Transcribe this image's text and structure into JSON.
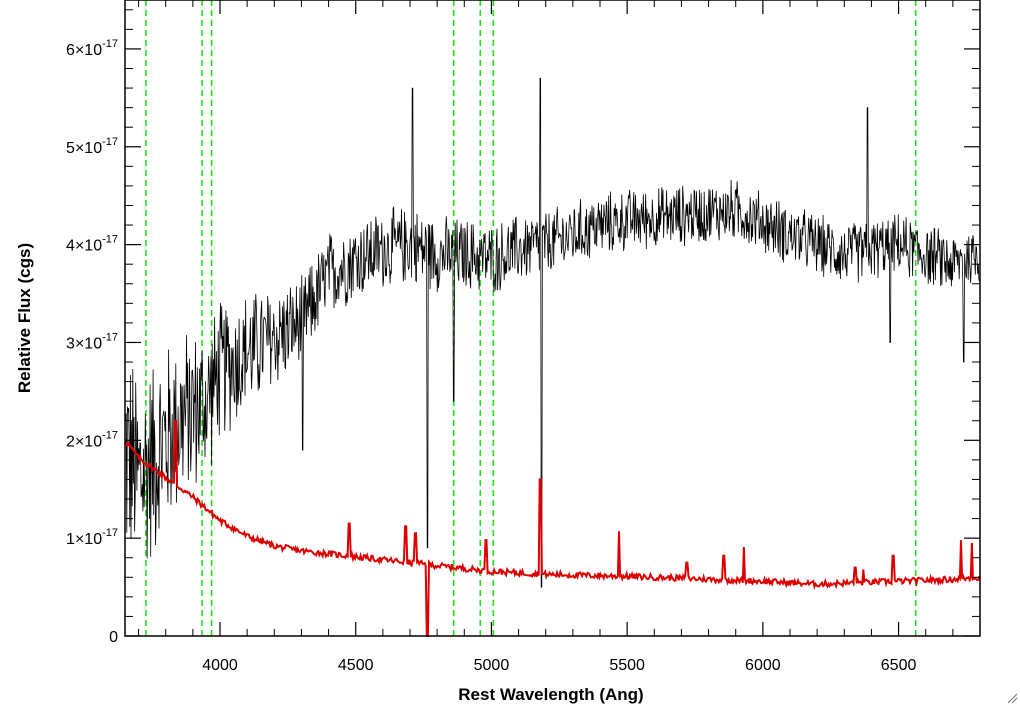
{
  "chart_data": {
    "type": "line",
    "title": "",
    "xlabel": "Rest Wavelength (Ang)",
    "ylabel": "Relative Flux (cgs)",
    "xlim": [
      3650,
      6800
    ],
    "ylim": [
      0,
      6.5e-17
    ],
    "x_ticks": [
      4000,
      4500,
      5000,
      5500,
      6000,
      6500
    ],
    "x_tick_labels": [
      "4000",
      "4500",
      "5000",
      "5500",
      "6000",
      "6500"
    ],
    "y_ticks": [
      0,
      1e-17,
      2e-17,
      3e-17,
      4e-17,
      5e-17,
      6e-17
    ],
    "y_tick_labels": [
      {
        "mantissa": "0",
        "exponent": ""
      },
      {
        "mantissa": "1",
        "exponent": "-17"
      },
      {
        "mantissa": "2",
        "exponent": "-17"
      },
      {
        "mantissa": "3",
        "exponent": "-17"
      },
      {
        "mantissa": "4",
        "exponent": "-17"
      },
      {
        "mantissa": "5",
        "exponent": "-17"
      },
      {
        "mantissa": "6",
        "exponent": "-17"
      }
    ],
    "reference_lines": {
      "style": "dashed",
      "color": "#22dd22",
      "x": [
        3727,
        3934,
        3969,
        4861,
        4959,
        5007,
        6563
      ]
    },
    "series": [
      {
        "color": "#000000",
        "anchors": [
          [
            3650,
            1.9e-17
          ],
          [
            3700,
            1.6e-17
          ],
          [
            3750,
            1.8e-17
          ],
          [
            3800,
            2e-17
          ],
          [
            3850,
            2.2e-17
          ],
          [
            3900,
            2.3e-17
          ],
          [
            3950,
            2.4e-17
          ],
          [
            4000,
            2.7e-17
          ],
          [
            4100,
            2.9e-17
          ],
          [
            4200,
            3.05e-17
          ],
          [
            4300,
            3.2e-17
          ],
          [
            4400,
            3.7e-17
          ],
          [
            4500,
            3.85e-17
          ],
          [
            4600,
            3.95e-17
          ],
          [
            4700,
            4e-17
          ],
          [
            4800,
            3.9e-17
          ],
          [
            4900,
            3.9e-17
          ],
          [
            5000,
            3.85e-17
          ],
          [
            5100,
            3.95e-17
          ],
          [
            5200,
            4e-17
          ],
          [
            5300,
            4.1e-17
          ],
          [
            5400,
            4.2e-17
          ],
          [
            5500,
            4.25e-17
          ],
          [
            5700,
            4.3e-17
          ],
          [
            5900,
            4.35e-17
          ],
          [
            6100,
            4.1e-17
          ],
          [
            6300,
            3.9e-17
          ],
          [
            6500,
            4e-17
          ],
          [
            6700,
            3.8e-17
          ],
          [
            6800,
            3.9e-17
          ]
        ],
        "noise": [
          [
            3650,
            1.3e-17
          ],
          [
            4000,
            8e-18
          ],
          [
            4300,
            5e-18
          ],
          [
            4600,
            4.5e-18
          ],
          [
            5500,
            3.5e-18
          ],
          [
            6800,
            3.5e-18
          ]
        ],
        "features": [
          [
            4305,
            3.2e-17,
            1.9e-17,
            1.2
          ],
          [
            4710,
            4e-17,
            5.6e-17,
            1.2
          ],
          [
            4765,
            3.9e-17,
            9e-18,
            1.5
          ],
          [
            4861,
            3.9e-17,
            2.4e-17,
            1.5
          ],
          [
            5180,
            3.9e-17,
            5.7e-17,
            1.2
          ],
          [
            5185,
            3.8e-17,
            5e-18,
            1.2
          ],
          [
            6385,
            4e-17,
            5.4e-17,
            1.5
          ],
          [
            6470,
            4e-17,
            3e-17,
            1.5
          ],
          [
            6740,
            3.8e-17,
            2.8e-17,
            1.5
          ]
        ]
      },
      {
        "color": "#dd0000",
        "continuum": [
          [
            3650,
            2e-17
          ],
          [
            3700,
            1.82e-17
          ],
          [
            3800,
            1.62e-17
          ],
          [
            3900,
            1.42e-17
          ],
          [
            4000,
            1.18e-17
          ],
          [
            4100,
            1.02e-17
          ],
          [
            4200,
            9.2e-18
          ],
          [
            4300,
            8.7e-18
          ],
          [
            4400,
            8.4e-18
          ],
          [
            4500,
            8.1e-18
          ],
          [
            4700,
            7.5e-18
          ],
          [
            4900,
            6.9e-18
          ],
          [
            5000,
            6.6e-18
          ],
          [
            5200,
            6.3e-18
          ],
          [
            5500,
            6.1e-18
          ],
          [
            5800,
            5.8e-18
          ],
          [
            6000,
            5.6e-18
          ],
          [
            6200,
            5.3e-18
          ],
          [
            6400,
            5.5e-18
          ],
          [
            6600,
            5.7e-18
          ],
          [
            6700,
            5.8e-18
          ],
          [
            6800,
            6e-18
          ]
        ],
        "lines": [
          [
            3835,
            2.2e-17
          ],
          [
            4475,
            1.15e-17
          ],
          [
            4685,
            1.12e-17
          ],
          [
            4720,
            1.05e-17
          ],
          [
            4765,
            -3e-18
          ],
          [
            4980,
            9.8e-18
          ],
          [
            5180,
            1.6e-17
          ],
          [
            5470,
            1.07e-17
          ],
          [
            5720,
            7.5e-18
          ],
          [
            5855,
            8.2e-18
          ],
          [
            5930,
            9.1e-18
          ],
          [
            6340,
            7e-18
          ],
          [
            6370,
            6.8e-18
          ],
          [
            6480,
            8.2e-18
          ],
          [
            6730,
            9.8e-18
          ],
          [
            6770,
            9.5e-18
          ]
        ]
      }
    ]
  }
}
